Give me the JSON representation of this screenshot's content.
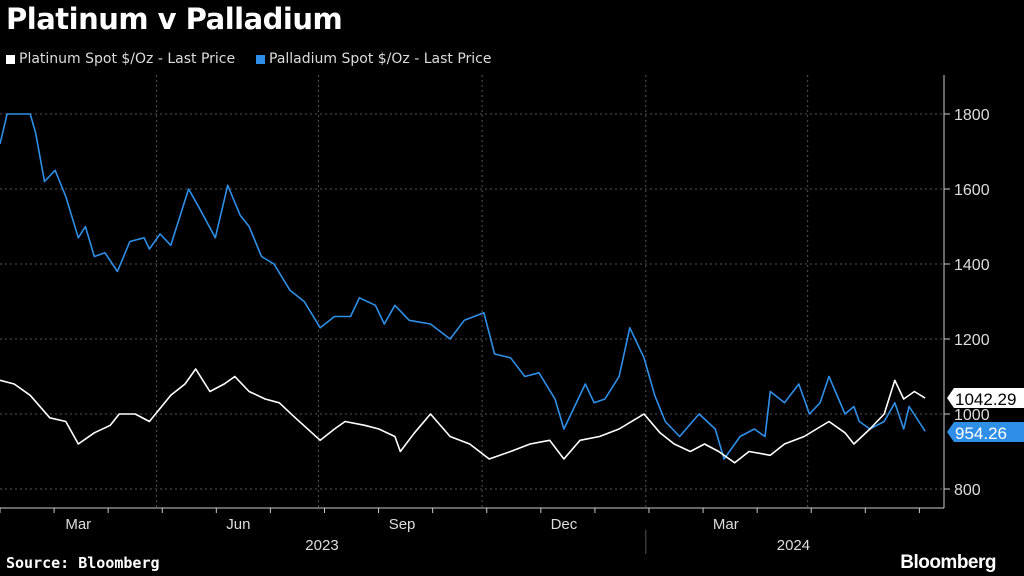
{
  "chart_data": {
    "type": "line",
    "title": "Platinum v Palladium",
    "x_unit": "days since 2023-01-03",
    "x_ticks": [
      {
        "label": "Mar",
        "day": 44
      },
      {
        "label": "Jun",
        "day": 134
      },
      {
        "label": "Sep",
        "day": 226
      },
      {
        "label": "Dec",
        "day": 317
      },
      {
        "label": "Mar",
        "day": 408
      }
    ],
    "year_labels": [
      {
        "label": "2023",
        "day": 181
      },
      {
        "label": "2024",
        "day": 446
      }
    ],
    "ylim": [
      760,
      1900
    ],
    "y_ticks": [
      800,
      1000,
      1200,
      1400,
      1600,
      1800
    ],
    "series": [
      {
        "name": "Platinum Spot $/Oz - Last Price",
        "color": "#ffffff",
        "last_label": "1042.29",
        "x": [
          0,
          8,
          17,
          28,
          37,
          44,
          53,
          62,
          67,
          76,
          84,
          96,
          104,
          110,
          118,
          126,
          132,
          140,
          149,
          157,
          166,
          180,
          188,
          194,
          205,
          213,
          222,
          225,
          233,
          242,
          253,
          264,
          275,
          287,
          298,
          309,
          317,
          326,
          337,
          348,
          362,
          371,
          379,
          388,
          396,
          404,
          413,
          421,
          433,
          441,
          452,
          466,
          475,
          480,
          489,
          497,
          503,
          508,
          514,
          520
        ],
        "values": [
          1090,
          1080,
          1050,
          990,
          980,
          920,
          950,
          970,
          1000,
          1000,
          980,
          1050,
          1080,
          1120,
          1060,
          1080,
          1100,
          1060,
          1040,
          1030,
          990,
          930,
          960,
          980,
          970,
          960,
          940,
          900,
          950,
          1000,
          940,
          920,
          880,
          900,
          920,
          930,
          880,
          930,
          940,
          960,
          1000,
          950,
          920,
          900,
          920,
          900,
          870,
          900,
          890,
          920,
          940,
          980,
          950,
          920,
          960,
          1000,
          1090,
          1040,
          1060,
          1042.29
        ]
      },
      {
        "name": "Palladium Spot $/Oz - Last Price",
        "color": "#2f8fe8",
        "last_label": "954.26",
        "x": [
          0,
          4,
          17,
          20,
          25,
          31,
          37,
          44,
          48,
          53,
          59,
          66,
          73,
          81,
          84,
          90,
          96,
          106,
          112,
          121,
          128,
          135,
          140,
          147,
          154,
          163,
          171,
          180,
          188,
          197,
          202,
          211,
          216,
          222,
          230,
          242,
          253,
          261,
          272,
          278,
          287,
          295,
          303,
          312,
          317,
          323,
          329,
          334,
          340,
          348,
          354,
          362,
          368,
          374,
          382,
          393,
          402,
          407,
          416,
          424,
          430,
          433,
          441,
          449,
          455,
          461,
          466,
          475,
          480,
          483,
          489,
          497,
          503,
          508,
          511,
          520
        ],
        "values": [
          1720,
          1800,
          1800,
          1750,
          1620,
          1650,
          1580,
          1470,
          1500,
          1420,
          1430,
          1380,
          1460,
          1470,
          1440,
          1480,
          1450,
          1600,
          1550,
          1470,
          1610,
          1530,
          1500,
          1420,
          1400,
          1330,
          1300,
          1230,
          1260,
          1260,
          1310,
          1290,
          1240,
          1290,
          1250,
          1240,
          1200,
          1250,
          1270,
          1160,
          1150,
          1100,
          1110,
          1040,
          960,
          1020,
          1080,
          1030,
          1040,
          1100,
          1230,
          1150,
          1050,
          980,
          940,
          1000,
          960,
          880,
          940,
          960,
          940,
          1060,
          1030,
          1080,
          1000,
          1030,
          1100,
          1000,
          1020,
          980,
          960,
          980,
          1030,
          960,
          1020,
          954.26
        ]
      }
    ]
  },
  "footer": {
    "source": "Source: Bloomberg",
    "brand": "Bloomberg"
  }
}
